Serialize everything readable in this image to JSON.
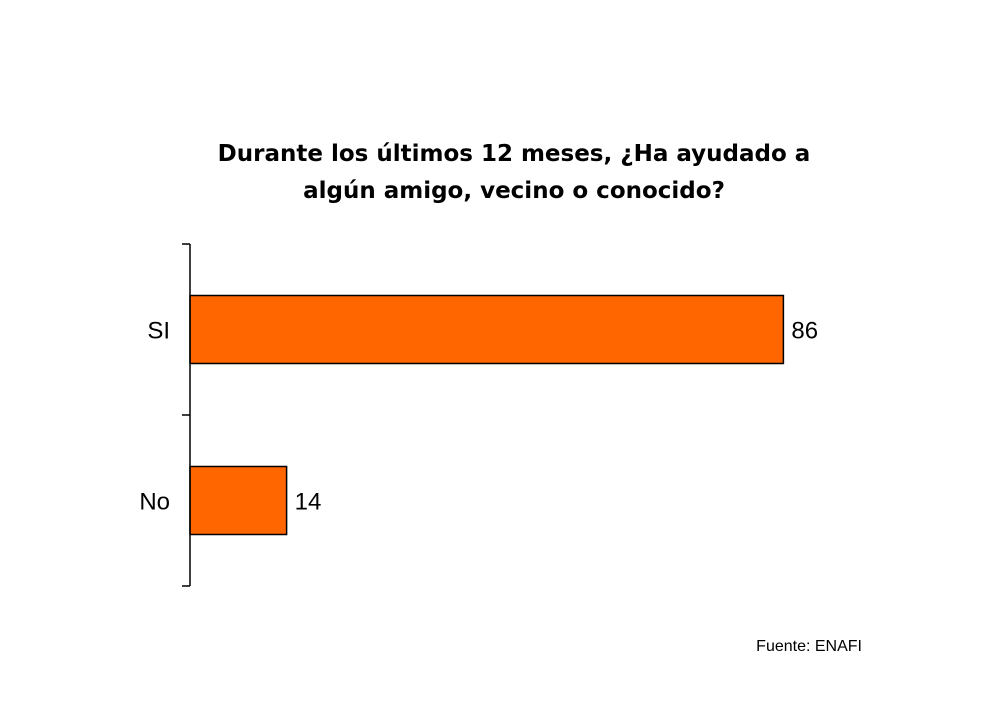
{
  "chart_data": {
    "type": "bar",
    "orientation": "horizontal",
    "title": "Durante los últimos 12 meses, ¿Ha ayudado a algún amigo, vecino o conocido?",
    "title_lines": [
      "Durante los últimos 12 meses, ¿Ha ayudado a",
      "algún amigo, vecino o conocido?"
    ],
    "categories": [
      "SI",
      "No"
    ],
    "values": [
      86,
      14
    ],
    "data_labels": [
      "86",
      "14"
    ],
    "xlim": [
      0,
      100
    ],
    "bar_color": "#ff6600",
    "bar_outline_color": "#000000",
    "grid": false,
    "legend": "none"
  },
  "source": "Fuente: ENAFI"
}
